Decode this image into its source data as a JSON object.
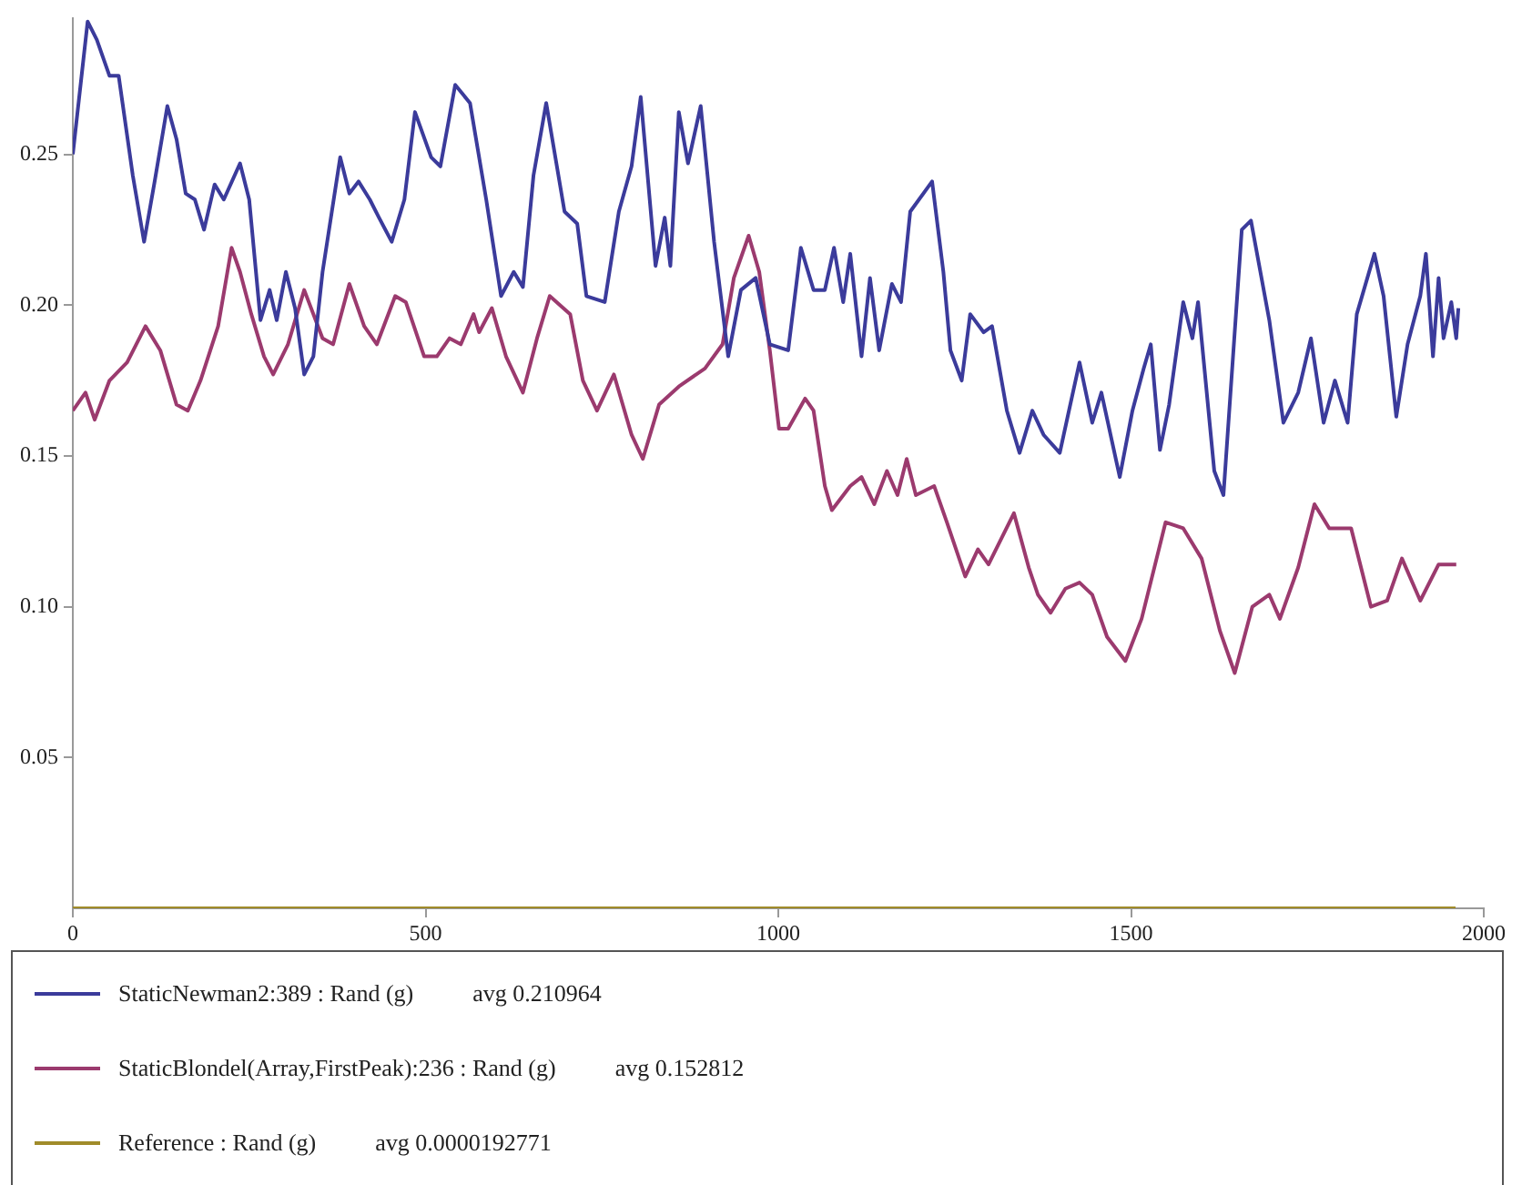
{
  "chart_data": {
    "type": "line",
    "xlim": [
      0,
      2000
    ],
    "xticks": [
      0,
      500,
      1000,
      1500,
      2000
    ],
    "ylim": [
      0,
      0.295
    ],
    "yticks": [
      0.05,
      {
        "value": 0.1,
        "label": "0.10"
      },
      0.15,
      {
        "value": 0.2,
        "label": "0.20"
      },
      0.25
    ],
    "grid": false,
    "legend": "bottom",
    "marker": "none",
    "line_style": "solid",
    "series": [
      {
        "name": "StaticNewman2:389 : Rand (g)          avg 0.210964",
        "color": "#3b3b9b",
        "x": [
          0,
          21,
          34,
          52,
          65,
          85,
          101,
          116,
          134,
          147,
          160,
          173,
          186,
          201,
          214,
          237,
          250,
          266,
          279,
          289,
          302,
          315,
          328,
          341,
          354,
          379,
          392,
          405,
          421,
          434,
          452,
          470,
          485,
          508,
          521,
          542,
          563,
          586,
          607,
          625,
          638,
          653,
          671,
          697,
          715,
          728,
          754,
          774,
          792,
          805,
          826,
          839,
          847,
          859,
          872,
          890,
          909,
          929,
          947,
          968,
          988,
          1014,
          1032,
          1050,
          1066,
          1079,
          1092,
          1102,
          1118,
          1130,
          1143,
          1161,
          1174,
          1187,
          1218,
          1234,
          1244,
          1260,
          1272,
          1291,
          1303,
          1324,
          1342,
          1360,
          1376,
          1399,
          1412,
          1427,
          1445,
          1458,
          1484,
          1502,
          1518,
          1528,
          1541,
          1554,
          1574,
          1587,
          1595,
          1618,
          1631,
          1657,
          1670,
          1696,
          1716,
          1737,
          1755,
          1773,
          1789,
          1807,
          1820,
          1845,
          1858,
          1876,
          1892,
          1910,
          1918,
          1928,
          1936,
          1943,
          1954,
          1961,
          1964
        ],
        "values": [
          0.25,
          0.294,
          0.288,
          0.276,
          0.276,
          0.243,
          0.221,
          0.241,
          0.266,
          0.255,
          0.237,
          0.235,
          0.225,
          0.24,
          0.235,
          0.247,
          0.235,
          0.195,
          0.205,
          0.195,
          0.211,
          0.199,
          0.177,
          0.183,
          0.211,
          0.249,
          0.237,
          0.241,
          0.235,
          0.229,
          0.221,
          0.235,
          0.264,
          0.249,
          0.246,
          0.273,
          0.267,
          0.235,
          0.203,
          0.211,
          0.206,
          0.243,
          0.267,
          0.231,
          0.227,
          0.203,
          0.201,
          0.231,
          0.246,
          0.269,
          0.213,
          0.229,
          0.213,
          0.264,
          0.247,
          0.266,
          0.221,
          0.183,
          0.205,
          0.209,
          0.187,
          0.185,
          0.219,
          0.205,
          0.205,
          0.219,
          0.201,
          0.217,
          0.183,
          0.209,
          0.185,
          0.207,
          0.201,
          0.231,
          0.241,
          0.211,
          0.185,
          0.175,
          0.197,
          0.191,
          0.193,
          0.165,
          0.151,
          0.165,
          0.157,
          0.151,
          0.165,
          0.181,
          0.161,
          0.171,
          0.143,
          0.165,
          0.179,
          0.187,
          0.152,
          0.167,
          0.201,
          0.189,
          0.201,
          0.145,
          0.137,
          0.225,
          0.228,
          0.195,
          0.161,
          0.171,
          0.189,
          0.161,
          0.175,
          0.161,
          0.197,
          0.217,
          0.203,
          0.163,
          0.187,
          0.203,
          0.217,
          0.183,
          0.209,
          0.189,
          0.201,
          0.189,
          0.199
        ]
      },
      {
        "name": "StaticBlondel(Array,FirstPeak):236 : Rand (g)          avg 0.152812",
        "color": "#9b3a6e",
        "x": [
          0,
          18,
          31,
          52,
          77,
          103,
          124,
          147,
          163,
          181,
          206,
          225,
          237,
          253,
          271,
          284,
          305,
          328,
          354,
          369,
          392,
          413,
          431,
          457,
          472,
          498,
          516,
          534,
          550,
          568,
          576,
          594,
          614,
          638,
          658,
          676,
          705,
          723,
          743,
          767,
          792,
          808,
          831,
          859,
          896,
          921,
          937,
          958,
          973,
          988,
          1001,
          1014,
          1038,
          1050,
          1066,
          1076,
          1102,
          1118,
          1136,
          1154,
          1169,
          1182,
          1195,
          1221,
          1239,
          1265,
          1283,
          1298,
          1334,
          1355,
          1368,
          1386,
          1407,
          1427,
          1445,
          1466,
          1492,
          1515,
          1549,
          1574,
          1600,
          1626,
          1647,
          1672,
          1696,
          1711,
          1737,
          1760,
          1781,
          1812,
          1840,
          1863,
          1884,
          1910,
          1936,
          1961
        ],
        "values": [
          0.165,
          0.171,
          0.162,
          0.175,
          0.181,
          0.193,
          0.185,
          0.167,
          0.165,
          0.175,
          0.193,
          0.219,
          0.211,
          0.197,
          0.183,
          0.177,
          0.187,
          0.205,
          0.189,
          0.187,
          0.207,
          0.193,
          0.187,
          0.203,
          0.201,
          0.183,
          0.183,
          0.189,
          0.187,
          0.197,
          0.191,
          0.199,
          0.183,
          0.171,
          0.189,
          0.203,
          0.197,
          0.175,
          0.165,
          0.177,
          0.157,
          0.149,
          0.167,
          0.173,
          0.179,
          0.187,
          0.209,
          0.223,
          0.211,
          0.185,
          0.159,
          0.159,
          0.169,
          0.165,
          0.14,
          0.132,
          0.14,
          0.143,
          0.134,
          0.145,
          0.137,
          0.149,
          0.137,
          0.14,
          0.128,
          0.11,
          0.119,
          0.114,
          0.131,
          0.113,
          0.104,
          0.098,
          0.106,
          0.108,
          0.104,
          0.09,
          0.082,
          0.096,
          0.128,
          0.126,
          0.116,
          0.092,
          0.078,
          0.1,
          0.104,
          0.096,
          0.113,
          0.134,
          0.126,
          0.126,
          0.1,
          0.102,
          0.116,
          0.102,
          0.114,
          0.114
        ]
      },
      {
        "name": "Reference : Rand (g)          avg 0.0000192771",
        "color": "#a08b2a",
        "x": [
          0,
          1960
        ],
        "values": [
          0,
          0
        ]
      }
    ]
  }
}
